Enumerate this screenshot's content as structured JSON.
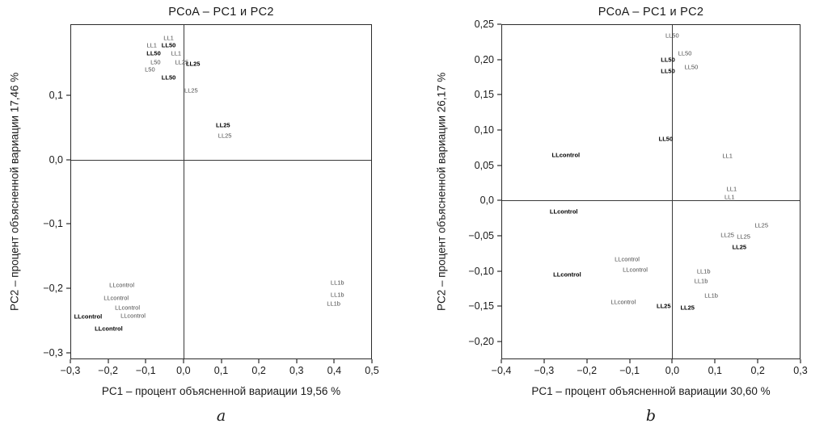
{
  "colors": {
    "axis": "#000000",
    "point_normal": "#4a4a4a",
    "point_bold": "#000000",
    "background": "#ffffff"
  },
  "chart_data": [
    {
      "type": "scatter",
      "title": "PCoA – PC1 и PC2",
      "xlabel": "PC1 – процент объясненной вариации 19,56 %",
      "ylabel": "PC2 – процент объясненной вариации 17,46 %",
      "caption": "a",
      "grid": false,
      "legend": "none",
      "xlim": [
        -0.3,
        0.5
      ],
      "ylim": [
        -0.31,
        0.21
      ],
      "xticks": {
        "values": [
          -0.3,
          -0.2,
          -0.1,
          0.0,
          0.1,
          0.2,
          0.3,
          0.4,
          0.5
        ],
        "labels": [
          "−0,3",
          "−0,2",
          "−0,1",
          "0,0",
          "0,1",
          "0,2",
          "0,3",
          "0,4",
          "0,5"
        ]
      },
      "yticks": {
        "values": [
          -0.3,
          -0.2,
          -0.1,
          0.0,
          0.1
        ],
        "labels": [
          "−0,3",
          "−0,2",
          "−0,1",
          "0,0",
          "0,1"
        ]
      },
      "points": [
        {
          "label": "LL1",
          "x": -0.04,
          "y": 0.19,
          "bold": false
        },
        {
          "label": "LL1",
          "x": -0.085,
          "y": 0.178,
          "bold": false
        },
        {
          "label": "LL50",
          "x": -0.04,
          "y": 0.178,
          "bold": true
        },
        {
          "label": "LL50",
          "x": -0.08,
          "y": 0.166,
          "bold": true
        },
        {
          "label": "LL1",
          "x": -0.02,
          "y": 0.166,
          "bold": false
        },
        {
          "label": "L50",
          "x": -0.075,
          "y": 0.152,
          "bold": false
        },
        {
          "label": "LL25",
          "x": -0.005,
          "y": 0.152,
          "bold": false
        },
        {
          "label": "LL25",
          "x": 0.025,
          "y": 0.15,
          "bold": true
        },
        {
          "label": "L50",
          "x": -0.09,
          "y": 0.141,
          "bold": false
        },
        {
          "label": "LL50",
          "x": -0.04,
          "y": 0.128,
          "bold": true
        },
        {
          "label": "LL25",
          "x": 0.02,
          "y": 0.108,
          "bold": false
        },
        {
          "label": "LL25",
          "x": 0.105,
          "y": 0.054,
          "bold": true
        },
        {
          "label": "LL25",
          "x": 0.11,
          "y": 0.038,
          "bold": false
        },
        {
          "label": "LLcontrol",
          "x": -0.165,
          "y": -0.196,
          "bold": false
        },
        {
          "label": "LLcontrol",
          "x": -0.18,
          "y": -0.215,
          "bold": false
        },
        {
          "label": "LLcontrol",
          "x": -0.15,
          "y": -0.231,
          "bold": false
        },
        {
          "label": "LLcontrol",
          "x": -0.255,
          "y": -0.245,
          "bold": true
        },
        {
          "label": "LLcontrol",
          "x": -0.135,
          "y": -0.243,
          "bold": false
        },
        {
          "label": "LLcontrol",
          "x": -0.2,
          "y": -0.263,
          "bold": true
        },
        {
          "label": "LL1b",
          "x": 0.41,
          "y": -0.192,
          "bold": false
        },
        {
          "label": "LL1b",
          "x": 0.41,
          "y": -0.21,
          "bold": false
        },
        {
          "label": "LL1b",
          "x": 0.4,
          "y": -0.225,
          "bold": false
        }
      ]
    },
    {
      "type": "scatter",
      "title": "PCoA – PC1 и PC2",
      "xlabel": "PC1 – процент объясненной вариации 30,60 %",
      "ylabel": "PC2 – процент объясненной вариации 26,17 %",
      "caption": "b",
      "grid": false,
      "legend": "none",
      "xlim": [
        -0.4,
        0.3
      ],
      "ylim": [
        -0.225,
        0.25
      ],
      "xticks": {
        "values": [
          -0.4,
          -0.3,
          -0.2,
          -0.1,
          0.0,
          0.1,
          0.2,
          0.3
        ],
        "labels": [
          "−0,4",
          "−0,3",
          "−0,2",
          "−0,1",
          "0,0",
          "0,1",
          "0,2",
          "0,3"
        ]
      },
      "yticks": {
        "values": [
          -0.2,
          -0.15,
          -0.1,
          -0.05,
          0.0,
          0.05,
          0.1,
          0.15,
          0.2,
          0.25
        ],
        "labels": [
          "−0,20",
          "−0,15",
          "−0,10",
          "−0,05",
          "0,0",
          "0,05",
          "0,10",
          "0,15",
          "0,20",
          "0,25"
        ]
      },
      "points": [
        {
          "label": "LL50",
          "x": 0.0,
          "y": 0.235,
          "bold": false
        },
        {
          "label": "LL50",
          "x": 0.03,
          "y": 0.21,
          "bold": false
        },
        {
          "label": "LL50",
          "x": -0.01,
          "y": 0.2,
          "bold": true
        },
        {
          "label": "LL50",
          "x": 0.045,
          "y": 0.19,
          "bold": false
        },
        {
          "label": "LL50",
          "x": -0.01,
          "y": 0.185,
          "bold": true
        },
        {
          "label": "LL50",
          "x": -0.015,
          "y": 0.088,
          "bold": true
        },
        {
          "label": "LLcontrol",
          "x": -0.25,
          "y": 0.065,
          "bold": true
        },
        {
          "label": "LL1",
          "x": 0.13,
          "y": 0.064,
          "bold": false
        },
        {
          "label": "LL1",
          "x": 0.14,
          "y": 0.017,
          "bold": false
        },
        {
          "label": "LL1",
          "x": 0.135,
          "y": 0.005,
          "bold": false
        },
        {
          "label": "LLcontrol",
          "x": -0.255,
          "y": -0.016,
          "bold": true
        },
        {
          "label": "LL25",
          "x": 0.21,
          "y": -0.035,
          "bold": false
        },
        {
          "label": "LL25",
          "x": 0.13,
          "y": -0.049,
          "bold": false
        },
        {
          "label": "LL25",
          "x": 0.168,
          "y": -0.051,
          "bold": false
        },
        {
          "label": "LL25",
          "x": 0.158,
          "y": -0.066,
          "bold": true
        },
        {
          "label": "LLcontrol",
          "x": -0.106,
          "y": -0.084,
          "bold": false
        },
        {
          "label": "LLcontrol",
          "x": -0.087,
          "y": -0.099,
          "bold": false
        },
        {
          "label": "LLcontrol",
          "x": -0.247,
          "y": -0.105,
          "bold": true
        },
        {
          "label": "LL1b",
          "x": 0.074,
          "y": -0.101,
          "bold": false
        },
        {
          "label": "LL1b",
          "x": 0.068,
          "y": -0.115,
          "bold": false
        },
        {
          "label": "LL1b",
          "x": 0.092,
          "y": -0.135,
          "bold": false
        },
        {
          "label": "LLcontrol",
          "x": -0.115,
          "y": -0.145,
          "bold": false
        },
        {
          "label": "LL25",
          "x": -0.02,
          "y": -0.15,
          "bold": true
        },
        {
          "label": "LL25",
          "x": 0.036,
          "y": -0.153,
          "bold": true
        }
      ]
    }
  ]
}
